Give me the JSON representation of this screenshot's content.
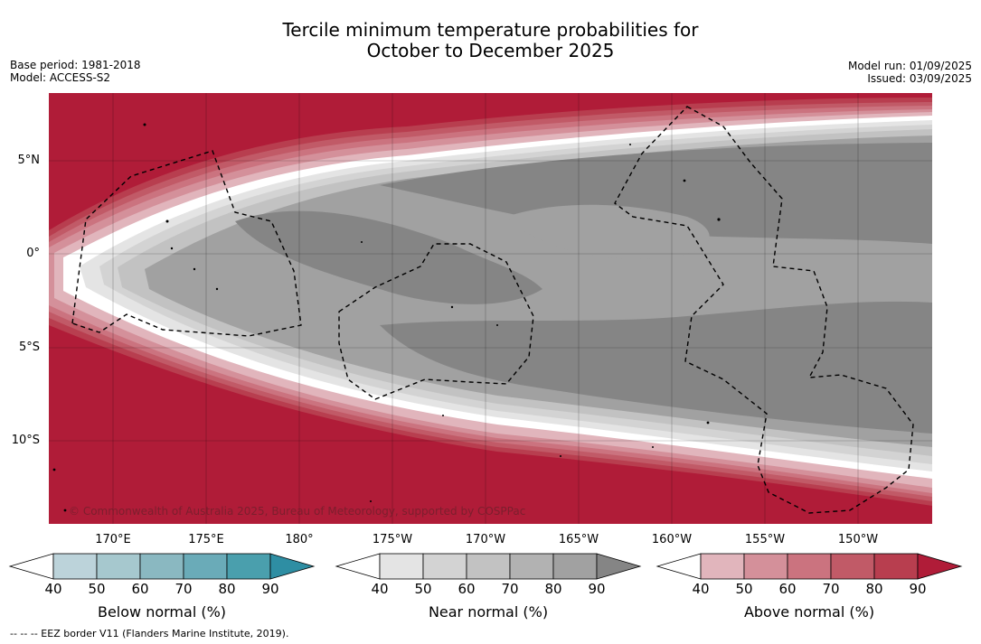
{
  "title_line1": "Tercile minimum temperature probabilities for",
  "title_line2": "October to December 2025",
  "base_period": "Base period: 1981-2018",
  "model": "Model: ACCESS-S2",
  "model_run": "Model run: 01/09/2025",
  "issued": "Issued: 03/09/2025",
  "lat_labels": [
    "5°N",
    "0°",
    "5°S",
    "10°S"
  ],
  "lon_labels": [
    "170°E",
    "175°E",
    "180°",
    "175°W",
    "170°W",
    "165°W",
    "160°W",
    "155°W",
    "150°W"
  ],
  "copyright": "© Commonwealth of Australia 2025, Bureau of Meteorology, supported by COSPPac",
  "footer": "--  --  -- EEZ border V11 (Flanders Marine Institute, 2019).",
  "colorbars": [
    {
      "label": "Below normal (%)",
      "ticks": [
        "40",
        "50",
        "60",
        "70",
        "80",
        "90"
      ],
      "colors": [
        "#bcd3da",
        "#a6c8ce",
        "#8ab8c1",
        "#6aabb8",
        "#4a9fad",
        "#2e8ea3"
      ]
    },
    {
      "label": "Near normal (%)",
      "ticks": [
        "40",
        "50",
        "60",
        "70",
        "80",
        "90"
      ],
      "colors": [
        "#e4e4e4",
        "#d3d3d3",
        "#c2c2c2",
        "#b2b2b2",
        "#a1a1a1",
        "#858585"
      ]
    },
    {
      "label": "Above normal (%)",
      "ticks": [
        "40",
        "50",
        "60",
        "70",
        "80",
        "90"
      ],
      "colors": [
        "#e1b5bc",
        "#d4909a",
        "#cb737f",
        "#c15a67",
        "#b83e4f",
        "#b01c38"
      ]
    }
  ],
  "colors": {
    "above_max": "#b01c38",
    "near_max": "#858585",
    "below_max": "#2e8ea3"
  }
}
